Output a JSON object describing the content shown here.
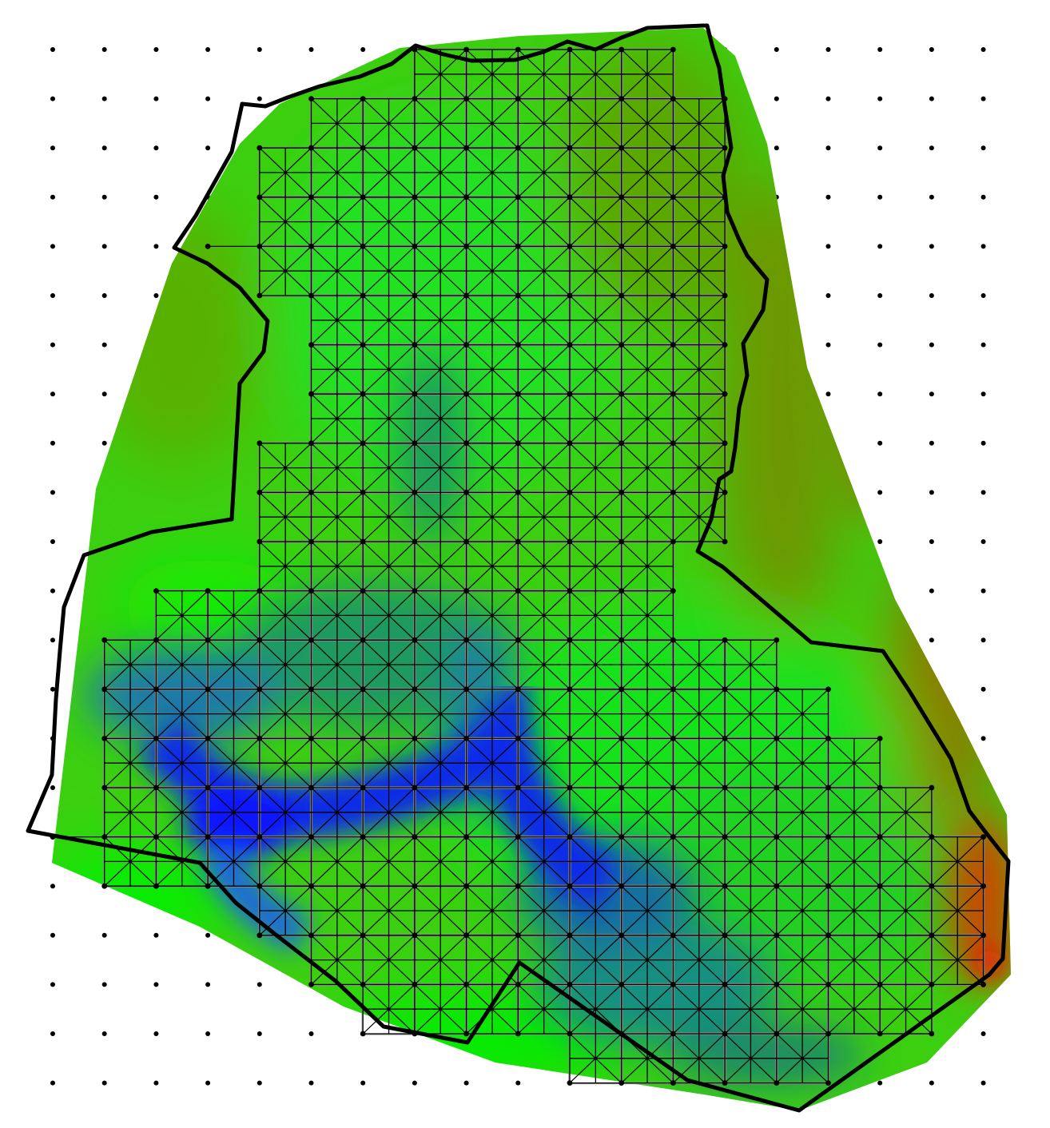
{
  "figure": {
    "kind": "finite-element mesh over interpolated scalar field",
    "colormap": {
      "low": "#0a1ff0",
      "mid_low": "#12808c",
      "mid": "#00ee00",
      "mid_high": "#4caf00",
      "high_mid": "#8a7a00",
      "high": "#ff1010"
    }
  }
}
